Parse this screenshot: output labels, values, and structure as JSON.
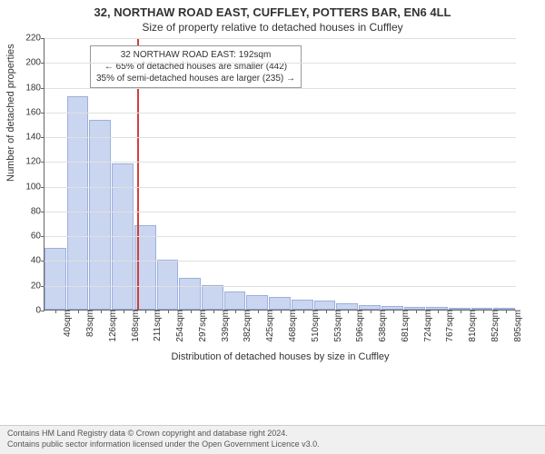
{
  "title": {
    "main": "32, NORTHAW ROAD EAST, CUFFLEY, POTTERS BAR, EN6 4LL",
    "sub": "Size of property relative to detached houses in Cuffley"
  },
  "y_axis": {
    "label": "Number of detached properties",
    "min": 0,
    "max": 220,
    "ticks": [
      0,
      20,
      40,
      60,
      80,
      100,
      120,
      140,
      160,
      180,
      200,
      220
    ]
  },
  "x_axis": {
    "label": "Distribution of detached houses by size in Cuffley",
    "categories": [
      "40sqm",
      "83sqm",
      "126sqm",
      "168sqm",
      "211sqm",
      "254sqm",
      "297sqm",
      "339sqm",
      "382sqm",
      "425sqm",
      "468sqm",
      "510sqm",
      "553sqm",
      "596sqm",
      "638sqm",
      "681sqm",
      "724sqm",
      "767sqm",
      "810sqm",
      "852sqm",
      "895sqm"
    ]
  },
  "histogram": {
    "values": [
      50,
      172,
      153,
      118,
      68,
      40,
      26,
      20,
      15,
      12,
      10,
      8,
      7,
      5,
      4,
      3,
      2,
      2,
      1,
      1,
      1
    ],
    "bar_fill": "#cad5ef",
    "bar_border": "#9cb0dd"
  },
  "reference_line": {
    "position_category_index": 3.6,
    "color": "#d04040",
    "callout": {
      "line1": "32 NORTHAW ROAD EAST: 192sqm",
      "line2": "← 65% of detached houses are smaller (442)",
      "line3": "35% of semi-detached houses are larger (235) →"
    }
  },
  "footer": {
    "line1": "Contains HM Land Registry data © Crown copyright and database right 2024.",
    "line2": "Contains public sector information licensed under the Open Government Licence v3.0."
  },
  "style": {
    "background_color": "#ffffff",
    "grid_color": "#e0e0e0",
    "axis_color": "#666666",
    "text_color": "#333333",
    "footer_bg": "#f0f0f0"
  }
}
